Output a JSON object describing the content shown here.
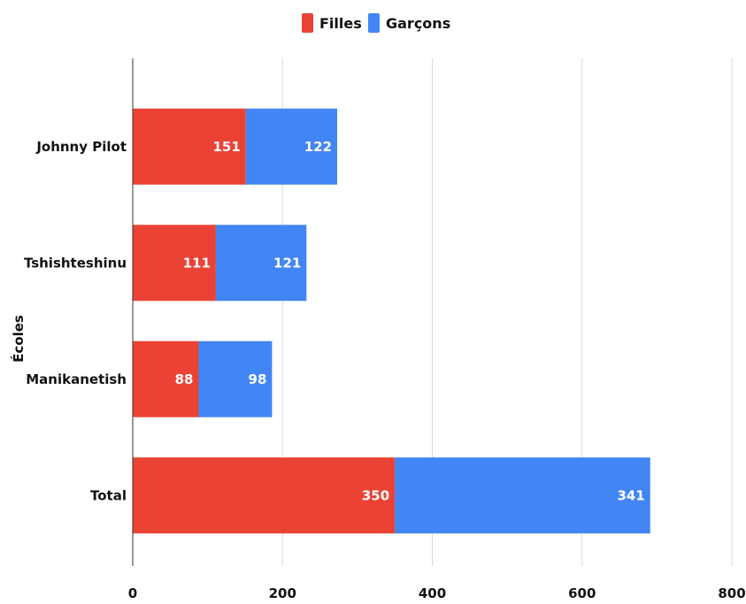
{
  "chart_data": {
    "type": "bar",
    "orientation": "horizontal",
    "stacked": true,
    "categories": [
      "Johnny Pilot",
      "Tshishteshinu",
      "Manikanetish",
      "Total"
    ],
    "series": [
      {
        "name": "Filles",
        "values": [
          151,
          111,
          88,
          350
        ],
        "color": "#ea4335"
      },
      {
        "name": "Garçons",
        "values": [
          122,
          121,
          98,
          341
        ],
        "color": "#4285f4"
      }
    ],
    "ylabel": "Écoles",
    "xlabel": "",
    "xlim": [
      0,
      800
    ],
    "xticks": [
      0,
      200,
      400,
      600,
      800
    ],
    "grid": true,
    "legend_position": "top-center",
    "data_labels": true
  }
}
